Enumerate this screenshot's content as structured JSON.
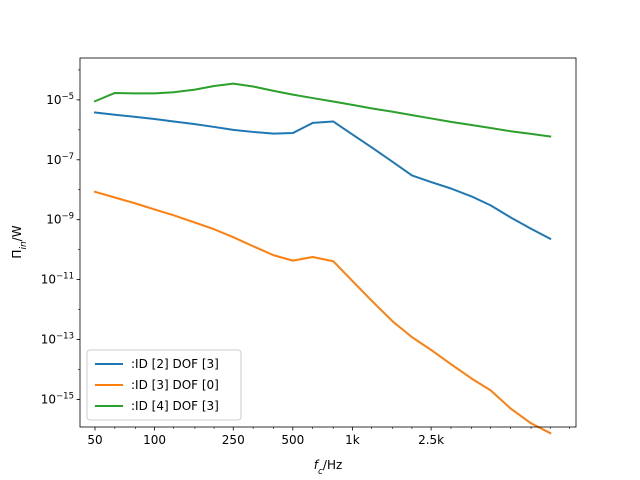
{
  "chart_data": {
    "type": "line",
    "title": "",
    "xlabel": "f_c/Hz",
    "ylabel": "Π_in/W",
    "xscale": "log",
    "yscale": "log",
    "xlim": [
      42,
      13500
    ],
    "ylim": [
      1.2e-16,
      0.00025
    ],
    "grid": false,
    "legend_position": "lower-left",
    "x_ticks": [
      {
        "value": 50,
        "label": "50"
      },
      {
        "value": 100,
        "label": "100"
      },
      {
        "value": 250,
        "label": "250"
      },
      {
        "value": 500,
        "label": "500"
      },
      {
        "value": 1000,
        "label": "1k"
      },
      {
        "value": 2500,
        "label": "2.5k"
      }
    ],
    "x_minor_ticks": [
      63,
      80,
      125,
      160,
      200,
      315,
      400,
      630,
      800,
      1250,
      1600,
      2000,
      3150,
      4000,
      5000,
      6300,
      8000,
      10000,
      12500
    ],
    "y_ticks": [
      {
        "value": 1e-05,
        "base": "10",
        "exp": "−5"
      },
      {
        "value": 1e-07,
        "base": "10",
        "exp": "−7"
      },
      {
        "value": 1e-09,
        "base": "10",
        "exp": "−9"
      },
      {
        "value": 1e-11,
        "base": "10",
        "exp": "−11"
      },
      {
        "value": 1e-13,
        "base": "10",
        "exp": "−13"
      },
      {
        "value": 1e-15,
        "base": "10",
        "exp": "−15"
      }
    ],
    "x": [
      50,
      63,
      80,
      100,
      125,
      160,
      200,
      250,
      315,
      400,
      500,
      630,
      800,
      1000,
      1250,
      1600,
      2000,
      2500,
      3150,
      4000,
      5000,
      6300,
      8000,
      10000
    ],
    "series": [
      {
        "name": ":ID [2] DOF [3]",
        "color": "#1f77b4",
        "values": [
          3.8e-06,
          3.2e-06,
          2.7e-06,
          2.3e-06,
          1.9e-06,
          1.55e-06,
          1.25e-06,
          1e-06,
          8.5e-07,
          7.5e-07,
          7.8e-07,
          1.7e-06,
          1.9e-06,
          7e-07,
          2.6e-07,
          8.5e-08,
          3e-08,
          1.8e-08,
          1.1e-08,
          6e-09,
          3e-09,
          1.2e-09,
          5e-10,
          2.3e-10
        ]
      },
      {
        "name": ":ID [3] DOF [0]",
        "color": "#ff7f0e",
        "values": [
          8.5e-09,
          5.5e-09,
          3.5e-09,
          2.2e-09,
          1.4e-09,
          8e-10,
          4.8e-10,
          2.6e-10,
          1.3e-10,
          6.5e-11,
          4.3e-11,
          5.7e-11,
          4.1e-11,
          9e-12,
          2e-12,
          4e-13,
          1.2e-13,
          4.5e-14,
          1.5e-14,
          5e-15,
          2e-15,
          5e-16,
          1.6e-16,
          7.5e-17
        ]
      },
      {
        "name": ":ID [4] DOF [3]",
        "color": "#2ca02c",
        "values": [
          9e-06,
          1.7e-05,
          1.65e-05,
          1.65e-05,
          1.8e-05,
          2.2e-05,
          2.9e-05,
          3.5e-05,
          2.8e-05,
          2e-05,
          1.5e-05,
          1.15e-05,
          8.8e-06,
          6.8e-06,
          5.2e-06,
          4e-06,
          3.1e-06,
          2.4e-06,
          1.85e-06,
          1.45e-06,
          1.15e-06,
          9e-07,
          7.3e-07,
          6e-07
        ]
      }
    ]
  }
}
